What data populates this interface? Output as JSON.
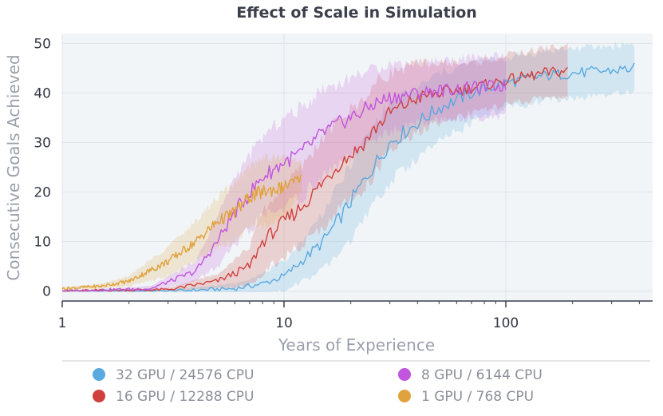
{
  "chart_data": {
    "type": "line",
    "title": "Effect of Scale in Simulation",
    "xlabel": "Years of Experience",
    "ylabel": "Consecutive Goals Achieved",
    "xscale": "log",
    "xlim": [
      1,
      420
    ],
    "ylim": [
      -2,
      52
    ],
    "xticks": [
      1,
      10,
      100
    ],
    "xtick_labels": [
      "1",
      "10",
      "100"
    ],
    "yticks": [
      0,
      10,
      20,
      30,
      40,
      50
    ],
    "ytick_labels": [
      "0",
      "10",
      "20",
      "30",
      "40",
      "50"
    ],
    "grid": true,
    "legend_position": "bottom",
    "series": [
      {
        "name": "32 GPU / 24576 CPU",
        "color": "#5aa9e0",
        "x": [
          1,
          3,
          6,
          8,
          10,
          12,
          15,
          18,
          22,
          26,
          30,
          40,
          50,
          70,
          100,
          150,
          200,
          300,
          380
        ],
        "y": [
          0,
          0,
          0.5,
          1.5,
          3,
          6,
          10,
          15,
          21,
          26,
          30,
          34,
          37,
          40,
          42,
          43.5,
          44,
          44.5,
          45
        ],
        "band_width": [
          0,
          0.3,
          1,
          2,
          3,
          4,
          6,
          7,
          8,
          8,
          8,
          7,
          7,
          6,
          5,
          5,
          5,
          5,
          5
        ]
      },
      {
        "name": "16 GPU / 12288 CPU",
        "color": "#d0403e",
        "x": [
          1,
          3,
          5,
          7,
          8,
          10,
          12,
          15,
          18,
          22,
          26,
          30,
          40,
          50,
          70,
          100,
          150,
          190
        ],
        "y": [
          0,
          0.3,
          2,
          5,
          10,
          14,
          17,
          22,
          26,
          29,
          33,
          36,
          39,
          40,
          41,
          42.5,
          44,
          44.5
        ],
        "band_width": [
          0,
          0.3,
          1.5,
          4,
          6,
          7,
          8,
          9,
          9,
          9,
          9,
          8,
          7,
          6,
          5,
          5,
          5,
          5
        ]
      },
      {
        "name": "8 GPU / 6144 CPU",
        "color": "#c255dd",
        "x": [
          1,
          2.5,
          4,
          5,
          6,
          8,
          10,
          12,
          15,
          18,
          22,
          26,
          30,
          40,
          50,
          70,
          100
        ],
        "y": [
          0,
          0.5,
          4,
          10,
          16,
          23,
          26,
          28,
          32,
          34,
          36,
          38,
          39,
          40,
          40.5,
          41,
          41.5
        ],
        "band_width": [
          0,
          0.5,
          2,
          5,
          7,
          8,
          9,
          9,
          9,
          8,
          8,
          7,
          7,
          6,
          6,
          6,
          6
        ]
      },
      {
        "name": "1 GPU / 768 CPU",
        "color": "#e0a23c",
        "x": [
          1,
          1.5,
          2,
          3,
          4,
          5,
          6,
          7,
          8,
          10,
          12
        ],
        "y": [
          0.5,
          1,
          2,
          6,
          10,
          14,
          16,
          19,
          20,
          21,
          23
        ],
        "band_width": [
          0.3,
          0.5,
          1,
          3,
          4,
          5,
          6,
          6,
          7,
          6,
          3
        ]
      }
    ]
  },
  "legend": {
    "items": [
      {
        "label": "32 GPU / 24576 CPU",
        "color": "#5aa9e0"
      },
      {
        "label": "8 GPU / 6144 CPU",
        "color": "#c255dd"
      },
      {
        "label": "16 GPU / 12288 CPU",
        "color": "#d0403e"
      },
      {
        "label": "1 GPU / 768 CPU",
        "color": "#e0a23c"
      }
    ]
  }
}
